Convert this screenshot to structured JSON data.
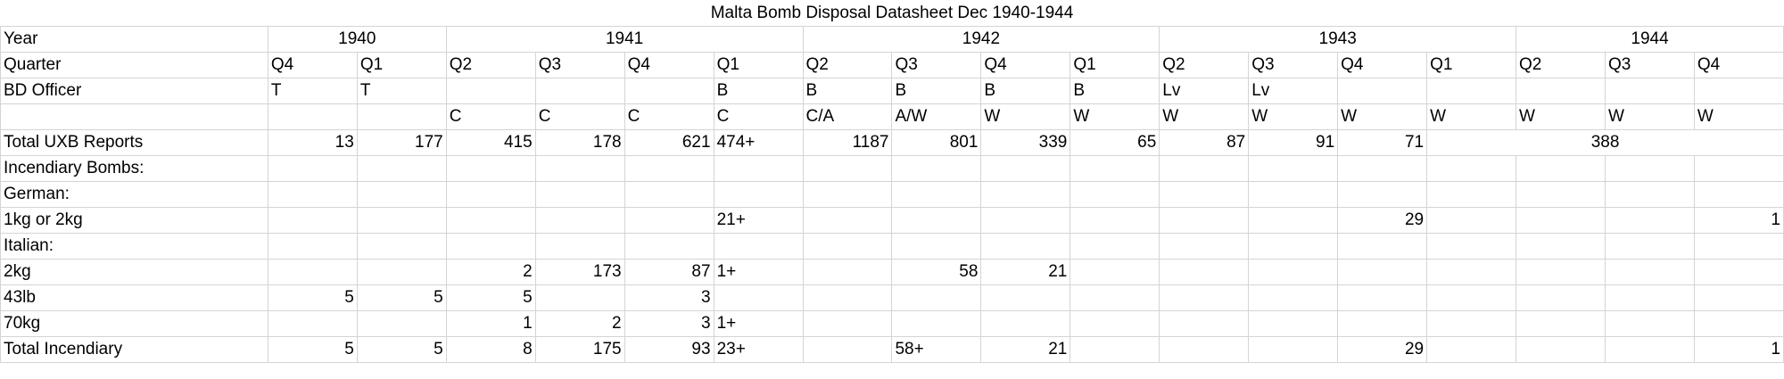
{
  "title": "Malta Bomb Disposal Datasheet Dec 1940-1944",
  "rows": [
    {
      "label": "Year",
      "cells": [
        {
          "text": "1940",
          "span": 2,
          "align": "c"
        },
        {
          "text": "1941",
          "span": 4,
          "align": "c"
        },
        {
          "text": "1942",
          "span": 4,
          "align": "c"
        },
        {
          "text": "1943",
          "span": 4,
          "align": "c"
        },
        {
          "text": "1944",
          "span": 4,
          "align": "c"
        }
      ]
    },
    {
      "label": "Quarter",
      "cells": [
        {
          "text": "Q4"
        },
        {
          "text": "Q1"
        },
        {
          "text": "Q2"
        },
        {
          "text": "Q3"
        },
        {
          "text": "Q4"
        },
        {
          "text": "Q1"
        },
        {
          "text": "Q2"
        },
        {
          "text": "Q3"
        },
        {
          "text": "Q4"
        },
        {
          "text": "Q1"
        },
        {
          "text": "Q2"
        },
        {
          "text": "Q3"
        },
        {
          "text": "Q4"
        },
        {
          "text": "Q1"
        },
        {
          "text": "Q2"
        },
        {
          "text": "Q3"
        },
        {
          "text": "Q4"
        }
      ]
    },
    {
      "label": "BD Officer",
      "cells": [
        {
          "text": "T"
        },
        {
          "text": "T"
        },
        {
          "text": ""
        },
        {
          "text": ""
        },
        {
          "text": ""
        },
        {
          "text": "B"
        },
        {
          "text": "B"
        },
        {
          "text": "B"
        },
        {
          "text": "B"
        },
        {
          "text": "B"
        },
        {
          "text": "Lv"
        },
        {
          "text": "Lv"
        },
        {
          "text": ""
        },
        {
          "text": ""
        },
        {
          "text": ""
        },
        {
          "text": ""
        },
        {
          "text": ""
        }
      ]
    },
    {
      "label": "",
      "cells": [
        {
          "text": ""
        },
        {
          "text": ""
        },
        {
          "text": "C"
        },
        {
          "text": "C"
        },
        {
          "text": "C"
        },
        {
          "text": "C"
        },
        {
          "text": "C/A"
        },
        {
          "text": "A/W"
        },
        {
          "text": "W"
        },
        {
          "text": "W"
        },
        {
          "text": "W"
        },
        {
          "text": "W"
        },
        {
          "text": "W"
        },
        {
          "text": "W"
        },
        {
          "text": "W"
        },
        {
          "text": "W"
        },
        {
          "text": "W"
        }
      ]
    },
    {
      "label": "Total UXB Reports",
      "cells": [
        {
          "text": "13",
          "align": "r"
        },
        {
          "text": "177",
          "align": "r"
        },
        {
          "text": "415",
          "align": "r"
        },
        {
          "text": "178",
          "align": "r"
        },
        {
          "text": "621",
          "align": "r"
        },
        {
          "text": "474+"
        },
        {
          "text": "1187",
          "align": "r"
        },
        {
          "text": "801",
          "align": "r"
        },
        {
          "text": "339",
          "align": "r"
        },
        {
          "text": "65",
          "align": "r"
        },
        {
          "text": "87",
          "align": "r"
        },
        {
          "text": "91",
          "align": "r"
        },
        {
          "text": "71",
          "align": "r"
        },
        {
          "text": "388",
          "span": 4,
          "align": "c"
        }
      ]
    },
    {
      "label": "Incendiary Bombs:",
      "cells": [],
      "fill": true
    },
    {
      "label": "German:",
      "cells": [],
      "fill": true
    },
    {
      "label": "1kg or 2kg",
      "cells": [
        {
          "text": ""
        },
        {
          "text": ""
        },
        {
          "text": ""
        },
        {
          "text": ""
        },
        {
          "text": ""
        },
        {
          "text": "21+"
        },
        {
          "text": ""
        },
        {
          "text": ""
        },
        {
          "text": ""
        },
        {
          "text": ""
        },
        {
          "text": ""
        },
        {
          "text": ""
        },
        {
          "text": "29",
          "align": "r"
        },
        {
          "text": ""
        },
        {
          "text": ""
        },
        {
          "text": ""
        },
        {
          "text": "1",
          "align": "r"
        }
      ]
    },
    {
      "label": "Italian:",
      "cells": [],
      "fill": true
    },
    {
      "label": "2kg",
      "cells": [
        {
          "text": ""
        },
        {
          "text": ""
        },
        {
          "text": "2",
          "align": "r"
        },
        {
          "text": "173",
          "align": "r"
        },
        {
          "text": "87",
          "align": "r"
        },
        {
          "text": "1+"
        },
        {
          "text": ""
        },
        {
          "text": "58",
          "align": "r"
        },
        {
          "text": "21",
          "align": "r"
        },
        {
          "text": ""
        },
        {
          "text": ""
        },
        {
          "text": ""
        },
        {
          "text": ""
        },
        {
          "text": ""
        },
        {
          "text": ""
        },
        {
          "text": ""
        },
        {
          "text": ""
        }
      ]
    },
    {
      "label": "43lb",
      "cells": [
        {
          "text": "5",
          "align": "r"
        },
        {
          "text": "5",
          "align": "r"
        },
        {
          "text": "5",
          "align": "r"
        },
        {
          "text": ""
        },
        {
          "text": "3",
          "align": "r"
        },
        {
          "text": ""
        },
        {
          "text": ""
        },
        {
          "text": ""
        },
        {
          "text": ""
        },
        {
          "text": ""
        },
        {
          "text": ""
        },
        {
          "text": ""
        },
        {
          "text": ""
        },
        {
          "text": ""
        },
        {
          "text": ""
        },
        {
          "text": ""
        },
        {
          "text": ""
        }
      ]
    },
    {
      "label": "70kg",
      "cells": [
        {
          "text": ""
        },
        {
          "text": ""
        },
        {
          "text": "1",
          "align": "r"
        },
        {
          "text": "2",
          "align": "r"
        },
        {
          "text": "3",
          "align": "r"
        },
        {
          "text": "1+"
        },
        {
          "text": ""
        },
        {
          "text": ""
        },
        {
          "text": ""
        },
        {
          "text": ""
        },
        {
          "text": ""
        },
        {
          "text": ""
        },
        {
          "text": ""
        },
        {
          "text": ""
        },
        {
          "text": ""
        },
        {
          "text": ""
        },
        {
          "text": ""
        }
      ]
    },
    {
      "label": "Total Incendiary",
      "cells": [
        {
          "text": "5",
          "align": "r"
        },
        {
          "text": "5",
          "align": "r"
        },
        {
          "text": "8",
          "align": "r"
        },
        {
          "text": "175",
          "align": "r"
        },
        {
          "text": "93",
          "align": "r"
        },
        {
          "text": "23+"
        },
        {
          "text": ""
        },
        {
          "text": "58+"
        },
        {
          "text": "21",
          "align": "r"
        },
        {
          "text": ""
        },
        {
          "text": ""
        },
        {
          "text": ""
        },
        {
          "text": "29",
          "align": "r"
        },
        {
          "text": ""
        },
        {
          "text": ""
        },
        {
          "text": ""
        },
        {
          "text": "1",
          "align": "r"
        }
      ]
    }
  ]
}
